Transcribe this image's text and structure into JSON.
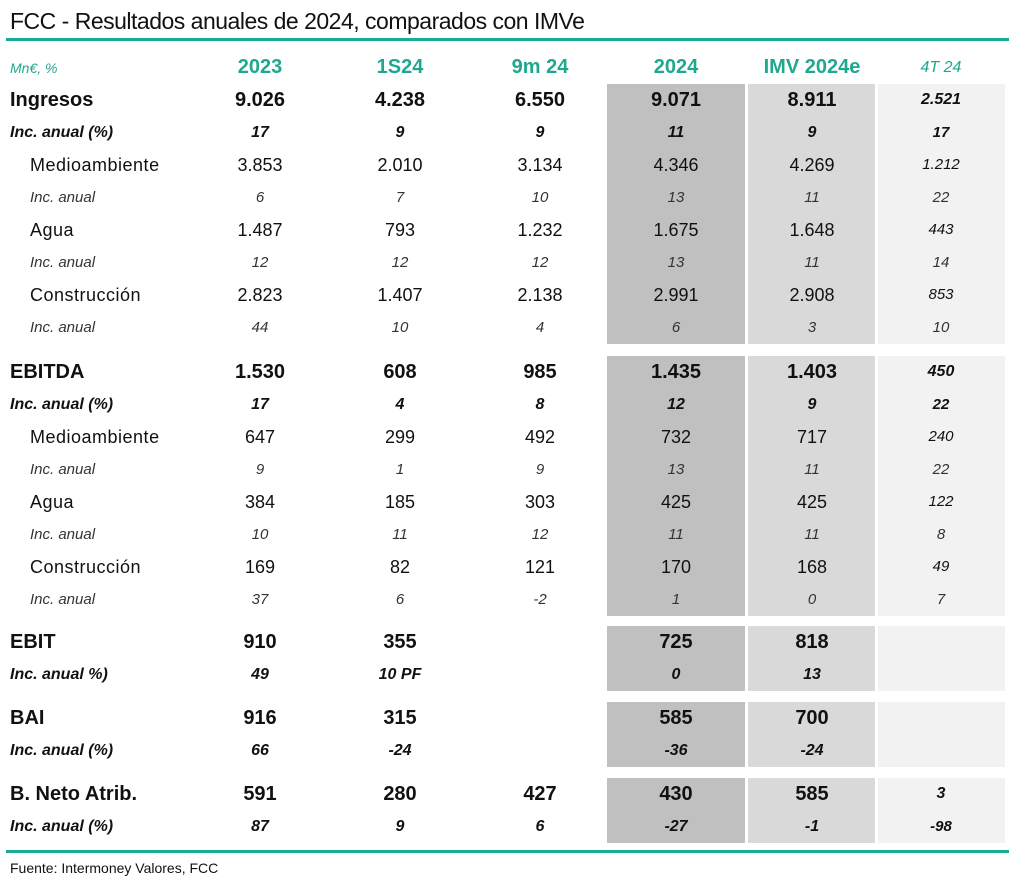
{
  "title": "FCC - Resultados anuales de 2024, comparados con IMVe",
  "header": {
    "unit": "Mn€, %",
    "columns": [
      "2023",
      "1S24",
      "9m 24",
      "2024",
      "IMV 2024e",
      "4T 24"
    ]
  },
  "groups": [
    {
      "rows": [
        {
          "t": "main",
          "label": "Ingresos",
          "v": [
            "9.026",
            "4.238",
            "6.550",
            "9.071",
            "8.911",
            "2.521"
          ]
        },
        {
          "t": "mpct",
          "label": "Inc. anual (%)",
          "v": [
            "17",
            "9",
            "9",
            "11",
            "9",
            "17"
          ]
        },
        {
          "t": "sub",
          "label": "Medioambiente",
          "v": [
            "3.853",
            "2.010",
            "3.134",
            "4.346",
            "4.269",
            "1.212"
          ]
        },
        {
          "t": "spct",
          "label": "Inc. anual",
          "v": [
            "6",
            "7",
            "10",
            "13",
            "11",
            "22"
          ]
        },
        {
          "t": "sub",
          "label": "Agua",
          "v": [
            "1.487",
            "793",
            "1.232",
            "1.675",
            "1.648",
            "443"
          ]
        },
        {
          "t": "spct",
          "label": "Inc. anual",
          "v": [
            "12",
            "12",
            "12",
            "13",
            "11",
            "14"
          ]
        },
        {
          "t": "sub",
          "label": "Construcción",
          "v": [
            "2.823",
            "1.407",
            "2.138",
            "2.991",
            "2.908",
            "853"
          ]
        },
        {
          "t": "spct",
          "label": "Inc. anual",
          "v": [
            "44",
            "10",
            "4",
            "6",
            "3",
            "10"
          ]
        }
      ]
    },
    {
      "rows": [
        {
          "t": "main",
          "label": "EBITDA",
          "v": [
            "1.530",
            "608",
            "985",
            "1.435",
            "1.403",
            "450"
          ]
        },
        {
          "t": "mpct",
          "label": "Inc. anual (%)",
          "v": [
            "17",
            "4",
            "8",
            "12",
            "9",
            "22"
          ]
        },
        {
          "t": "sub",
          "label": "Medioambiente",
          "v": [
            "647",
            "299",
            "492",
            "732",
            "717",
            "240"
          ]
        },
        {
          "t": "spct",
          "label": "Inc. anual",
          "v": [
            "9",
            "1",
            "9",
            "13",
            "11",
            "22"
          ]
        },
        {
          "t": "sub",
          "label": "Agua",
          "v": [
            "384",
            "185",
            "303",
            "425",
            "425",
            "122"
          ]
        },
        {
          "t": "spct",
          "label": "Inc. anual",
          "v": [
            "10",
            "11",
            "12",
            "11",
            "11",
            "8"
          ]
        },
        {
          "t": "sub",
          "label": "Construcción",
          "v": [
            "169",
            "82",
            "121",
            "170",
            "168",
            "49"
          ]
        },
        {
          "t": "spct",
          "label": "Inc. anual",
          "v": [
            "37",
            "6",
            "-2",
            "1",
            "0",
            "7"
          ]
        }
      ]
    },
    {
      "rows": [
        {
          "t": "main",
          "label": "EBIT",
          "v": [
            "910",
            "355",
            "",
            "725",
            "818",
            ""
          ]
        },
        {
          "t": "mpct",
          "label": "Inc. anual %)",
          "v": [
            "49",
            "10 PF",
            "",
            "0",
            "13",
            ""
          ]
        }
      ]
    },
    {
      "rows": [
        {
          "t": "main",
          "label": "BAI",
          "v": [
            "916",
            "315",
            "",
            "585",
            "700",
            ""
          ]
        },
        {
          "t": "mpct",
          "label": "Inc. anual (%)",
          "v": [
            "66",
            "-24",
            "",
            "-36",
            "-24",
            ""
          ]
        }
      ]
    },
    {
      "rows": [
        {
          "t": "main",
          "label": "B. Neto Atrib.",
          "v": [
            "591",
            "280",
            "427",
            "430",
            "585",
            "3"
          ]
        },
        {
          "t": "mpct",
          "label": "Inc. anual (%)",
          "v": [
            "87",
            "9",
            "6",
            "-27",
            "-1",
            "-98"
          ]
        }
      ]
    }
  ],
  "footer": "Fuente: Intermoney Valores, FCC",
  "colors": {
    "accent": "#17ab98",
    "col2024": "#c0c0c0",
    "colIMV": "#d9d9d9",
    "col4T": "#f2f2f2"
  }
}
